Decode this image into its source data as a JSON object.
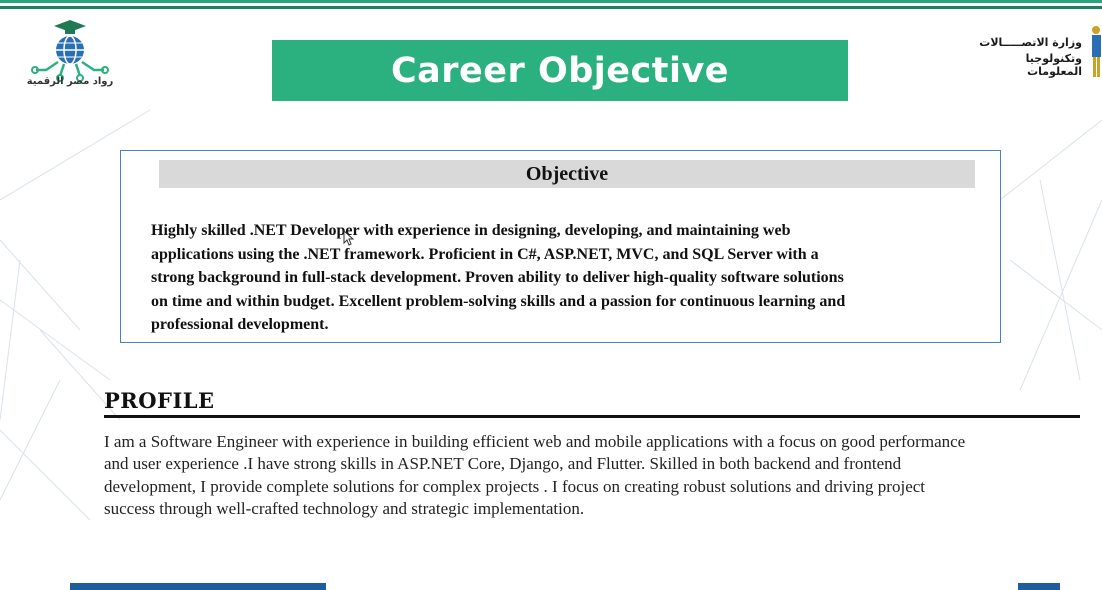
{
  "slide": {
    "title": "Career Objective"
  },
  "logos": {
    "left_caption": "رواد مصر الرقمية",
    "left_icon": "globe-graduation-cap-icon",
    "right_line1": "وزارة الاتصـــــالات",
    "right_line2": "وتكنولوجيا المعلومات",
    "right_icon": "pharaoh-figure-icon"
  },
  "objective": {
    "heading": "Objective",
    "lines": [
      "Highly skilled .NET Developer with experience in designing, developing, and maintaining web",
      "applications using the .NET framework. Proficient in C#, ASP.NET, MVC, and SQL Server with a",
      "strong background in full-stack development. Proven ability to deliver high-quality software solutions",
      "on time and within budget. Excellent problem-solving skills and a passion for continuous learning and",
      "professional development."
    ]
  },
  "profile": {
    "heading": "PROFILE",
    "lines": [
      "I am a Software Engineer with  experience in building efficient web and mobile applications with a focus on good performance",
      "and user experience .I have strong skills in ASP.NET Core, Django, and Flutter.  Skilled in both backend and frontend",
      "development, I provide complete solutions for complex projects . I focus on creating robust solutions and driving project",
      "success through well-crafted technology and strategic implementation."
    ]
  },
  "colors": {
    "banner": "#2bb07f",
    "box_border": "#4a7fc0",
    "heading_bg": "#d9d9d9",
    "bottom_bar": "#1f5e9a"
  }
}
